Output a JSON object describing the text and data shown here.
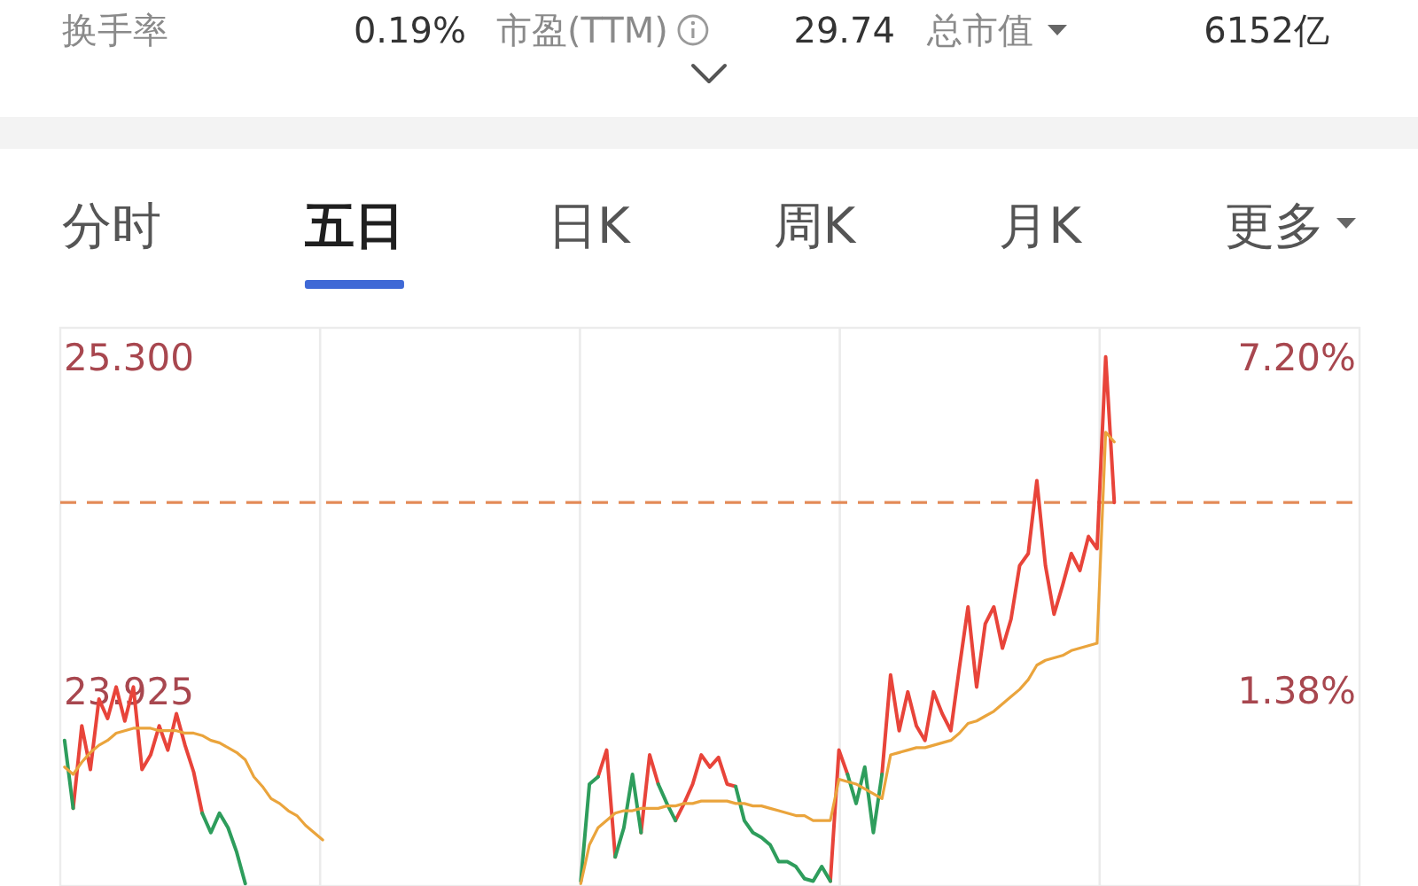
{
  "chart_data": [
    {
      "type": "other",
      "annotations": [
        "换手率",
        "0.19%",
        "市盈(TTM)",
        "29.74",
        "总市值",
        "6152亿",
        "分时",
        "五日",
        "日K",
        "周K",
        "月K",
        "更多"
      ]
    },
    {
      "type": "line",
      "categories": [
        null,
        null,
        null,
        null,
        null,
        null,
        null,
        null,
        null,
        null,
        null,
        null,
        null,
        null,
        null,
        null,
        null,
        null,
        null,
        null,
        null,
        null,
        null,
        null,
        null,
        null,
        null,
        null,
        null,
        null,
        null,
        null,
        null,
        null,
        null,
        null,
        null,
        null,
        null,
        null,
        null,
        null,
        null,
        null,
        null,
        null,
        null,
        null,
        null,
        null,
        null,
        null,
        null,
        null,
        null,
        null,
        null,
        null,
        null,
        null,
        null,
        null,
        null,
        null,
        null,
        null,
        null,
        null,
        null,
        null,
        null,
        null,
        null,
        null,
        null,
        null,
        null,
        null,
        null,
        null,
        null,
        null,
        null,
        null,
        null,
        null,
        null,
        null,
        null,
        null,
        null,
        null,
        null,
        null,
        null,
        null,
        null,
        null,
        null,
        null,
        null,
        null,
        null,
        null,
        null,
        null,
        null,
        null,
        null,
        null,
        null,
        null,
        null,
        null,
        null,
        null,
        null,
        null,
        null,
        null,
        null,
        null,
        null,
        null,
        null,
        null,
        null,
        null,
        null,
        null,
        null,
        null,
        null,
        null,
        null,
        null,
        null,
        null,
        null,
        null,
        null,
        null,
        null,
        null,
        null,
        null,
        null,
        null,
        null,
        null,
        null
      ],
      "ylim": [
        23.12,
        25.42
      ],
      "yticks": [
        {
          "value": 25.3,
          "label": "25.300"
        },
        {
          "value": 23.925,
          "label": "23.925"
        }
      ],
      "y2lim": [
        -2.03,
        7.71
      ],
      "y2ticks": [
        {
          "value": 7.2,
          "label": "7.20%"
        },
        {
          "value": 1.38,
          "label": "1.38%"
        }
      ],
      "ref_lines": [
        {
          "axis": "y",
          "value": 24.7,
          "color": "#e38a57",
          "line_style": "dashed"
        }
      ],
      "series": [
        {
          "color": "#e8443a",
          "values": [
            null,
            23.44,
            23.78,
            23.6,
            23.89,
            23.81,
            23.94,
            23.8,
            23.94,
            23.6,
            23.66,
            23.78,
            23.68,
            23.83,
            23.7,
            23.59,
            23.42,
            null,
            null,
            null,
            null,
            null,
            null,
            null,
            null,
            null,
            null,
            null,
            null,
            null,
            null,
            null,
            null,
            null,
            null,
            null,
            null,
            null,
            null,
            null,
            null,
            null,
            null,
            null,
            null,
            null,
            null,
            null,
            null,
            null,
            null,
            null,
            null,
            null,
            null,
            null,
            null,
            null,
            null,
            null,
            null,
            null,
            23.57,
            23.68,
            23.24,
            null,
            null,
            23.34,
            23.66,
            23.54,
            null,
            23.39,
            23.46,
            23.54,
            23.66,
            23.61,
            23.65,
            23.54,
            23.53,
            null,
            null,
            null,
            null,
            null,
            null,
            null,
            null,
            null,
            null,
            23.14,
            23.68,
            23.58,
            null,
            null,
            null,
            23.58,
            23.99,
            23.76,
            23.92,
            23.78,
            23.72,
            23.92,
            23.83,
            23.76,
            24.02,
            24.27,
            23.94,
            24.2,
            24.27,
            24.1,
            24.22,
            24.44,
            24.49,
            24.79,
            24.44,
            24.24,
            24.36,
            24.49,
            24.42,
            24.56,
            24.51,
            25.3,
            24.7,
            null,
            null,
            null,
            null,
            null,
            null,
            null,
            null,
            null,
            null,
            null,
            null,
            null,
            null,
            null,
            null,
            null,
            null,
            null,
            null,
            null,
            null,
            null,
            null,
            null,
            null,
            null,
            null
          ]
        },
        {
          "color": "#2e9d5c",
          "values": [
            23.72,
            23.44,
            null,
            null,
            null,
            null,
            null,
            null,
            null,
            null,
            null,
            null,
            null,
            null,
            null,
            null,
            23.42,
            23.34,
            23.42,
            23.36,
            23.26,
            23.13,
            null,
            null,
            null,
            null,
            null,
            null,
            null,
            null,
            null,
            null,
            null,
            null,
            null,
            null,
            null,
            null,
            null,
            null,
            null,
            null,
            null,
            null,
            null,
            null,
            null,
            null,
            null,
            null,
            null,
            null,
            null,
            null,
            null,
            null,
            null,
            null,
            null,
            null,
            23.14,
            23.54,
            23.57,
            null,
            23.24,
            23.36,
            23.58,
            23.34,
            null,
            23.54,
            23.46,
            23.39,
            null,
            null,
            null,
            null,
            null,
            null,
            23.53,
            23.39,
            23.34,
            23.32,
            23.29,
            23.22,
            23.22,
            23.2,
            23.15,
            23.14,
            23.2,
            23.14,
            null,
            23.58,
            23.46,
            23.61,
            23.34,
            23.58,
            null,
            null,
            null,
            null,
            null,
            null,
            null,
            null,
            null,
            null,
            null,
            null,
            null,
            null,
            null,
            null,
            null,
            null,
            null,
            null,
            null,
            null,
            null,
            null,
            null,
            null,
            null,
            null,
            null,
            null,
            null,
            null,
            null,
            null,
            null,
            null,
            null,
            null,
            null,
            null,
            null,
            null,
            null,
            null,
            null,
            null,
            null,
            null,
            null,
            null,
            null,
            null,
            null,
            null,
            null
          ]
        },
        {
          "color": "#eaa43c",
          "values": [
            23.61,
            23.58,
            23.63,
            23.67,
            23.7,
            23.72,
            23.75,
            23.76,
            23.77,
            23.77,
            23.77,
            23.76,
            23.76,
            23.76,
            23.75,
            23.75,
            23.74,
            23.72,
            23.71,
            23.69,
            23.67,
            23.64,
            23.57,
            23.53,
            23.48,
            23.46,
            23.43,
            23.41,
            23.37,
            23.34,
            23.31,
            null,
            null,
            null,
            null,
            null,
            null,
            null,
            null,
            null,
            null,
            null,
            null,
            null,
            null,
            null,
            null,
            null,
            null,
            null,
            null,
            null,
            null,
            null,
            null,
            null,
            null,
            null,
            null,
            null,
            23.13,
            23.29,
            23.36,
            23.39,
            23.42,
            23.43,
            23.43,
            23.44,
            23.44,
            23.44,
            23.45,
            23.45,
            23.46,
            23.46,
            23.47,
            23.47,
            23.47,
            23.47,
            23.46,
            23.46,
            23.45,
            23.45,
            23.44,
            23.43,
            23.42,
            23.41,
            23.41,
            23.39,
            23.39,
            23.39,
            23.56,
            23.55,
            23.54,
            23.52,
            23.5,
            23.48,
            23.66,
            23.67,
            23.68,
            23.69,
            23.69,
            23.7,
            23.71,
            23.72,
            23.75,
            23.79,
            23.8,
            23.82,
            23.84,
            23.87,
            23.9,
            23.93,
            23.97,
            24.03,
            24.05,
            24.06,
            24.07,
            24.09,
            24.1,
            24.11,
            24.12,
            24.99,
            24.95,
            null,
            null,
            null,
            null,
            null,
            null,
            null,
            null,
            null,
            null,
            null,
            null,
            null,
            null,
            null,
            null,
            null,
            null,
            null,
            null,
            null,
            null,
            null,
            null,
            null,
            null,
            null,
            null
          ]
        }
      ]
    }
  ]
}
